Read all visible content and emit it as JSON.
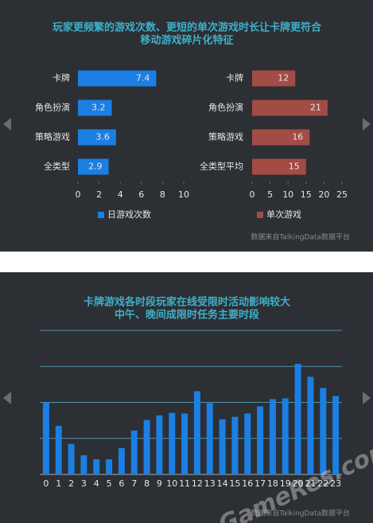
{
  "chart_data": [
    {
      "type": "hbar",
      "title": [
        "玩家更频繁的游戏次数、更短的单次游戏时长让卡牌更符合",
        "移动游戏碎片化特征"
      ],
      "categories": [
        "卡牌",
        "角色扮演",
        "策略游戏",
        "全类型"
      ],
      "series": [
        {
          "name": "日游戏次数",
          "color": "#1b7fe3",
          "values": [
            7.4,
            3.2,
            3.6,
            2.9
          ]
        }
      ],
      "xlim": [
        0,
        10
      ],
      "xticks": [
        0,
        2,
        4,
        6,
        8,
        10
      ]
    },
    {
      "type": "hbar",
      "categories": [
        "卡牌",
        "角色扮演",
        "策略游戏",
        "全类型平均"
      ],
      "series": [
        {
          "name": "单次游戏",
          "color": "#a34b45",
          "values": [
            12,
            21,
            16,
            15
          ]
        }
      ],
      "xlim": [
        0,
        25
      ],
      "xticks": [
        0,
        5,
        10,
        15,
        20,
        25
      ],
      "source": "数据来自TalkingData数据平台"
    },
    {
      "type": "bar",
      "title": [
        "卡牌游戏各时段玩家在线受限时活动影响较大",
        "中午、晚间成限时任务主要时段"
      ],
      "categories": [
        "0",
        "1",
        "2",
        "3",
        "4",
        "5",
        "6",
        "7",
        "8",
        "9",
        "10",
        "11",
        "12",
        "13",
        "14",
        "15",
        "16",
        "17",
        "18",
        "19",
        "20",
        "21",
        "22",
        "23"
      ],
      "series": [
        {
          "color": "#1b7fe3",
          "values": [
            2.0,
            1.35,
            0.85,
            0.53,
            0.42,
            0.42,
            0.73,
            1.22,
            1.51,
            1.64,
            1.71,
            1.69,
            2.31,
            1.98,
            1.53,
            1.6,
            1.69,
            1.89,
            2.09,
            2.11,
            3.07,
            2.71,
            2.4,
            2.18
          ]
        }
      ],
      "ylim": [
        0,
        4
      ],
      "yticks": [
        1,
        2,
        3,
        4
      ],
      "grid": true,
      "ytick_labels": false,
      "source": "数据来自TalkingData数据平台"
    }
  ],
  "watermark": "GameRes.com"
}
